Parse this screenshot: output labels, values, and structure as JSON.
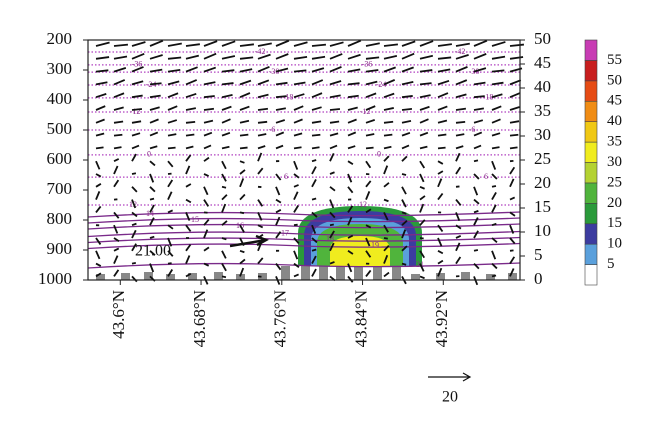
{
  "chart_data": {
    "type": "cross-section",
    "xlim": [
      43.568,
      43.996
    ],
    "xticks": [
      {
        "value": 43.6,
        "label": "43.6°N"
      },
      {
        "value": 43.68,
        "label": "43.68°N"
      },
      {
        "value": 43.76,
        "label": "43.76°N"
      },
      {
        "value": 43.84,
        "label": "43.84°N"
      },
      {
        "value": 43.92,
        "label": "43.92°N"
      }
    ],
    "ylim": [
      1000,
      200
    ],
    "yticks": [
      200,
      300,
      400,
      500,
      600,
      700,
      800,
      900,
      1000
    ],
    "y2lim": [
      0,
      50
    ],
    "y2ticks": [
      0,
      5,
      10,
      15,
      20,
      25,
      30,
      35,
      40,
      45,
      50
    ],
    "colorbar": {
      "ticks": [
        5,
        10,
        15,
        20,
        25,
        30,
        35,
        40,
        45,
        50,
        55
      ],
      "colors": [
        "#ffffff",
        "#5aa0dc",
        "#3c3ca0",
        "#2a9a3a",
        "#50b43c",
        "#b4d232",
        "#f0ec1e",
        "#f0c814",
        "#f08c14",
        "#e64b14",
        "#c81e1e",
        "#c83cb4"
      ]
    },
    "dotted_contours": [
      {
        "value": -42,
        "p": 240
      },
      {
        "value": -36,
        "p": 283
      },
      {
        "value": -30,
        "p": 307
      },
      {
        "value": -24,
        "p": 350
      },
      {
        "value": -18,
        "p": 393
      },
      {
        "value": -12,
        "p": 440
      },
      {
        "value": -6,
        "p": 500
      },
      {
        "value": 0,
        "p": 583
      },
      {
        "value": 6,
        "p": 657
      },
      {
        "value": 12,
        "p": 750
      }
    ],
    "solid_contours": [
      {
        "value": 14,
        "p": 780
      },
      {
        "value": 15,
        "p": 800
      },
      {
        "value": 16,
        "p": 820
      },
      {
        "value": 17,
        "p": 845
      },
      {
        "value": 18,
        "p": 865
      },
      {
        "value": 19,
        "p": 885
      },
      {
        "value": 21,
        "p": 950
      }
    ],
    "annotation": "21.00",
    "reference_vector": 20
  }
}
